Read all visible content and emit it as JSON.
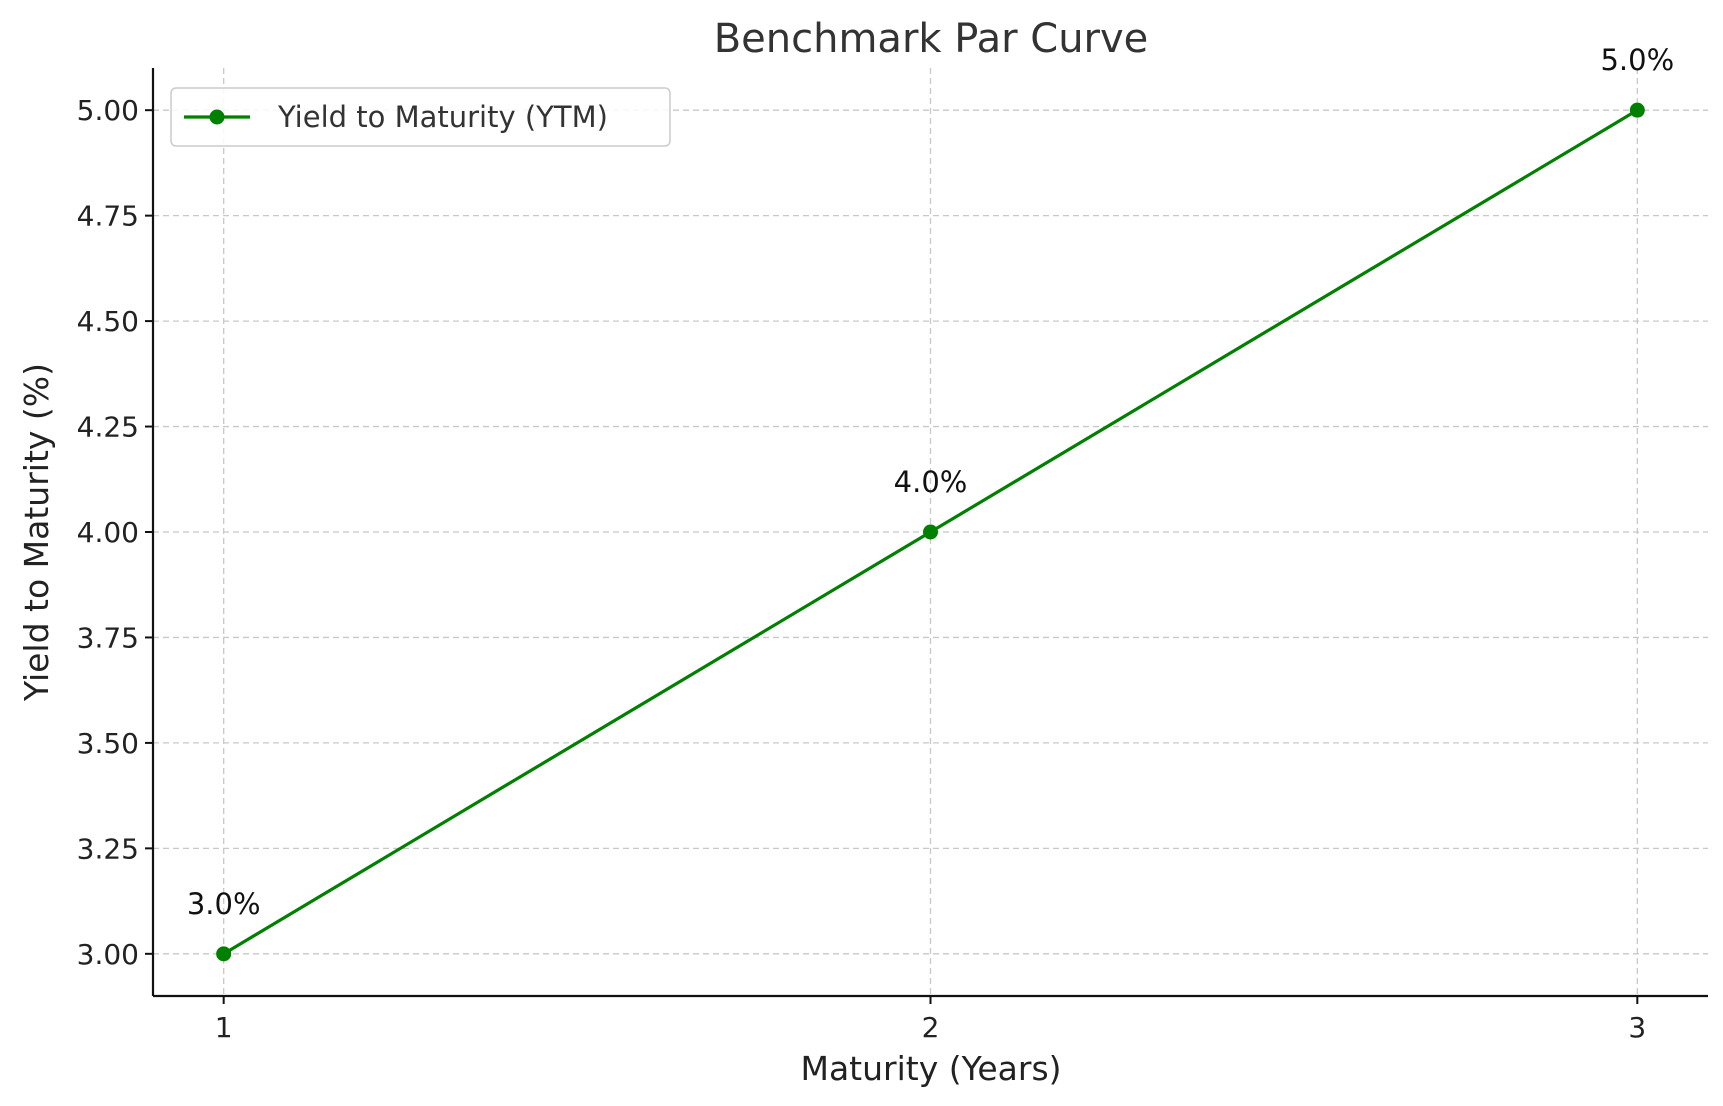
{
  "chart_data": {
    "type": "line",
    "title": "Benchmark Par Curve",
    "xlabel": "Maturity (Years)",
    "ylabel": "Yield to Maturity (%)",
    "x": [
      1,
      2,
      3
    ],
    "series": [
      {
        "name": "Yield to Maturity (YTM)",
        "values": [
          3.0,
          4.0,
          5.0
        ],
        "labels": [
          "3.0%",
          "4.0%",
          "5.0%"
        ],
        "color": "#008000",
        "marker": "circle"
      }
    ],
    "xlim": [
      0.9,
      3.1
    ],
    "ylim": [
      2.9,
      5.1
    ],
    "xticks": [
      1,
      2,
      3
    ],
    "xtick_labels": [
      "1",
      "2",
      "3"
    ],
    "yticks": [
      3.0,
      3.25,
      3.5,
      3.75,
      4.0,
      4.25,
      4.5,
      4.75,
      5.0
    ],
    "ytick_labels": [
      "3.00",
      "3.25",
      "3.50",
      "3.75",
      "4.00",
      "4.25",
      "4.50",
      "4.75",
      "5.00"
    ],
    "grid": true,
    "legend_position": "top-left"
  }
}
